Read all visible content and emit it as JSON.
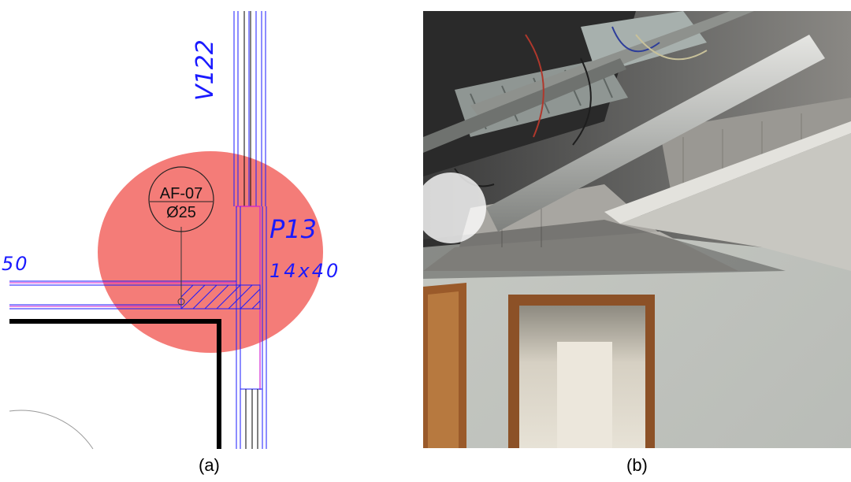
{
  "panel_a": {
    "beam_label": "V122",
    "pillar_label": "P13",
    "pillar_size": "14x40",
    "partial_dim": "50",
    "symbol_tag": "AF-07",
    "symbol_diameter": "Ø25",
    "highlight_color": "#f47c78",
    "line_color": "#1a1aff",
    "magenta_color": "#d21fd2"
  },
  "panel_b": {
    "description_icon": "ceiling-photo"
  },
  "captions": {
    "a": "(a)",
    "b": "(b)"
  }
}
